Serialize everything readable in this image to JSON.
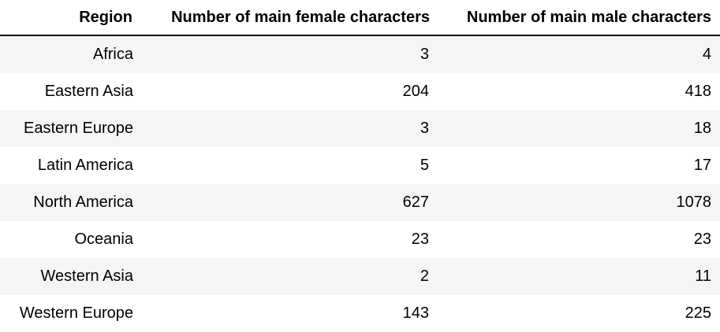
{
  "table": {
    "headers": [
      "Region",
      "Number of main female characters",
      "Number of main male characters"
    ],
    "rows": [
      [
        "Africa",
        "3",
        "4"
      ],
      [
        "Eastern Asia",
        "204",
        "418"
      ],
      [
        "Eastern Europe",
        "3",
        "18"
      ],
      [
        "Latin America",
        "5",
        "17"
      ],
      [
        "North America",
        "627",
        "1078"
      ],
      [
        "Oceania",
        "23",
        "23"
      ],
      [
        "Western Asia",
        "2",
        "11"
      ],
      [
        "Western Europe",
        "143",
        "225"
      ]
    ],
    "colors": {
      "stripe": "#f5f5f5",
      "header_rule": "#000000"
    }
  }
}
